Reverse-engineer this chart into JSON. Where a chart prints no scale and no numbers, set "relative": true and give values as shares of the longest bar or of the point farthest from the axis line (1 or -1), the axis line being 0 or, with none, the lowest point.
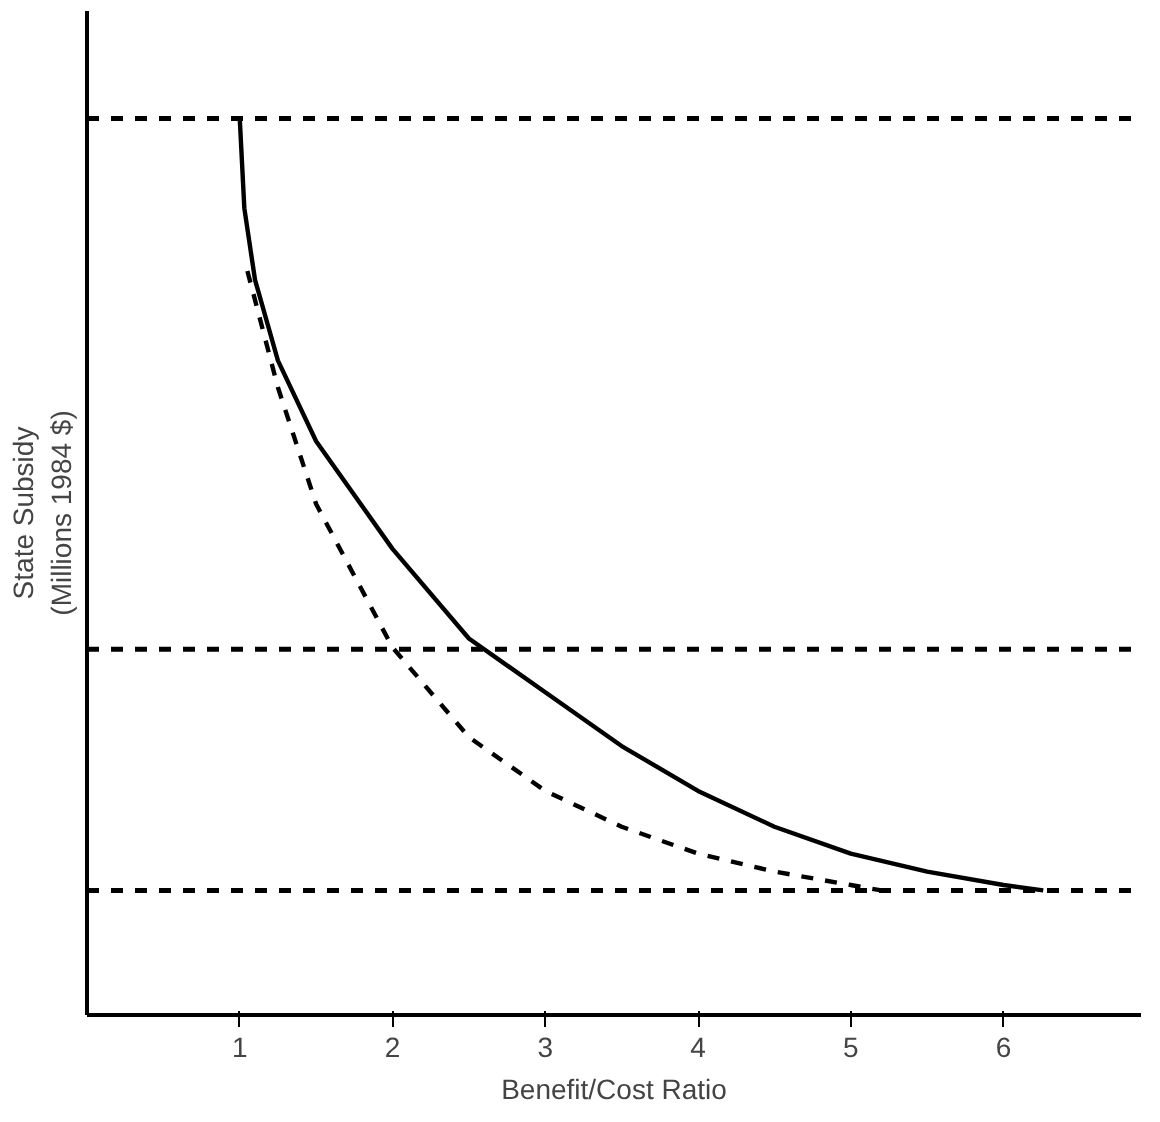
{
  "chart_data": {
    "type": "line",
    "relative": true,
    "xlabel": "Benefit/Cost Ratio",
    "ylabel": "State Subsidy\n(Millions 1984 $)",
    "xlim": [
      0,
      6.9
    ],
    "xticks": [
      1,
      2,
      3,
      4,
      5,
      6
    ],
    "grid": false,
    "marker": "none",
    "series": [
      {
        "color": "#000000",
        "line_style": "solid",
        "x": [
          1.0,
          1.03,
          1.1,
          1.25,
          1.5,
          2.0,
          2.5,
          3.0,
          3.5,
          4.0,
          4.5,
          5.0,
          5.5,
          6.0,
          6.26
        ],
        "values": [
          1.0,
          0.9,
          0.82,
          0.73,
          0.64,
          0.52,
          0.42,
          0.36,
          0.3,
          0.25,
          0.21,
          0.18,
          0.16,
          0.145,
          0.139
        ]
      },
      {
        "color": "#000000",
        "line_style": "dashed",
        "x": [
          1.05,
          1.25,
          1.5,
          2.0,
          2.5,
          3.0,
          3.5,
          4.0,
          4.5,
          5.0,
          5.2
        ],
        "values": [
          0.83,
          0.7,
          0.57,
          0.41,
          0.31,
          0.25,
          0.21,
          0.18,
          0.16,
          0.145,
          0.139
        ]
      }
    ],
    "ref_lines": [
      {
        "axis": "y",
        "value": 1.0,
        "color": "#000000",
        "line_style": "dashed"
      },
      {
        "axis": "y",
        "value": 0.408,
        "color": "#000000",
        "line_style": "dashed"
      },
      {
        "axis": "y",
        "value": 0.139,
        "color": "#000000",
        "line_style": "dashed"
      }
    ]
  }
}
